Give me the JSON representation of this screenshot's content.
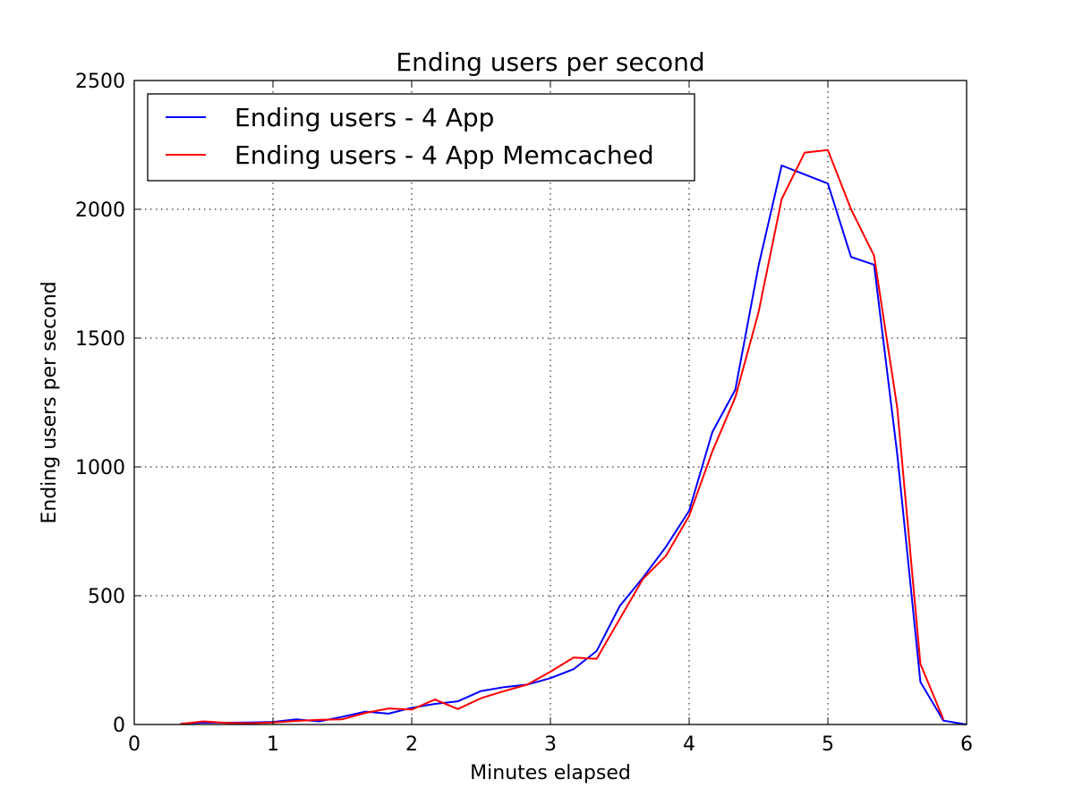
{
  "chart_data": {
    "type": "line",
    "title": "Ending users per second",
    "xlabel": "Minutes elapsed",
    "ylabel": "Ending users per second",
    "xlim": [
      0,
      6
    ],
    "ylim": [
      0,
      2500
    ],
    "xticks": [
      0,
      1,
      2,
      3,
      4,
      5,
      6
    ],
    "yticks": [
      0,
      500,
      1000,
      1500,
      2000,
      2500
    ],
    "grid": true,
    "legend_position": "top-left",
    "series": [
      {
        "name": "Ending users - 4 App",
        "color": "#0000ff",
        "x": [
          0.333,
          0.5,
          0.667,
          0.833,
          1.0,
          1.167,
          1.333,
          1.5,
          1.667,
          1.833,
          2.0,
          2.167,
          2.333,
          2.5,
          2.667,
          2.833,
          3.0,
          3.167,
          3.333,
          3.5,
          3.667,
          3.833,
          4.0,
          4.167,
          4.333,
          4.5,
          4.667,
          4.833,
          5.0,
          5.167,
          5.333,
          5.5,
          5.667,
          5.833,
          6.0
        ],
        "y": [
          3,
          8,
          7,
          8,
          10,
          20,
          12,
          30,
          50,
          42,
          65,
          80,
          90,
          130,
          145,
          155,
          180,
          215,
          285,
          460,
          570,
          690,
          830,
          1135,
          1300,
          1780,
          2170,
          2135,
          2100,
          1815,
          1785,
          1050,
          165,
          15,
          0
        ]
      },
      {
        "name": "Ending users - 4 App Memcached",
        "color": "#ff0000",
        "x": [
          0.333,
          0.5,
          0.667,
          0.833,
          1.0,
          1.167,
          1.333,
          1.5,
          1.667,
          1.833,
          2.0,
          2.167,
          2.333,
          2.5,
          2.667,
          2.833,
          3.0,
          3.167,
          3.333,
          3.5,
          3.667,
          3.833,
          4.0,
          4.167,
          4.333,
          4.5,
          4.667,
          4.833,
          5.0,
          5.167,
          5.333,
          5.5,
          5.667,
          5.833
        ],
        "y": [
          2,
          12,
          6,
          5,
          8,
          14,
          18,
          20,
          45,
          62,
          58,
          97,
          60,
          102,
          130,
          155,
          205,
          260,
          255,
          410,
          565,
          655,
          810,
          1060,
          1270,
          1600,
          2040,
          2220,
          2230,
          2000,
          1820,
          1230,
          235,
          20
        ]
      }
    ]
  }
}
